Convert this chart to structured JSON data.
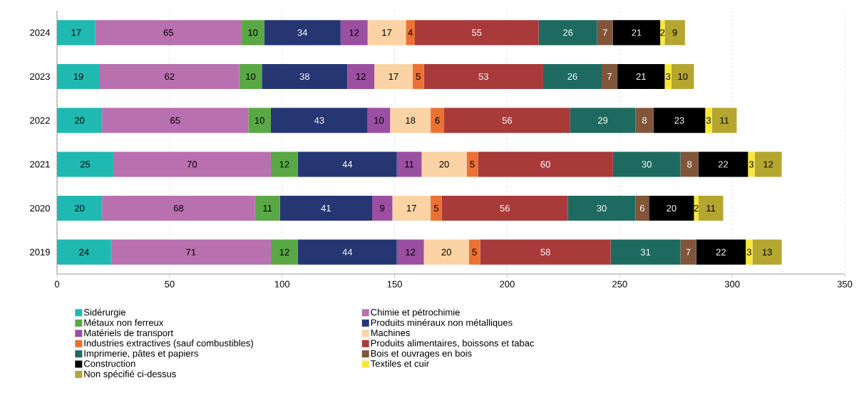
{
  "chart_data": {
    "type": "bar",
    "orientation": "horizontal",
    "stacked": true,
    "data_labels": true,
    "grid": "x",
    "legend": "bottom",
    "categories": [
      "2024",
      "2023",
      "2022",
      "2021",
      "2020",
      "2019"
    ],
    "xlim": [
      0,
      350
    ],
    "xticks": [
      0,
      50,
      100,
      150,
      200,
      250,
      300,
      350
    ],
    "series": [
      {
        "name": "Sidérurgie",
        "color": "#20b9b1",
        "values": [
          17,
          19,
          20,
          25,
          20,
          24
        ]
      },
      {
        "name": "Chimie et pétrochimie",
        "color": "#b870ae",
        "values": [
          65,
          62,
          65,
          70,
          68,
          71
        ]
      },
      {
        "name": "Métaux non ferreux",
        "color": "#5aa845",
        "values": [
          10,
          10,
          10,
          12,
          11,
          12
        ]
      },
      {
        "name": "Produits minéraux non métalliques",
        "color": "#263673",
        "values": [
          34,
          38,
          43,
          44,
          41,
          44
        ]
      },
      {
        "name": "Matériels de transport",
        "color": "#9b4fa0",
        "values": [
          12,
          12,
          10,
          11,
          9,
          12
        ]
      },
      {
        "name": "Machines",
        "color": "#fbd3a4",
        "values": [
          17,
          17,
          18,
          20,
          17,
          20
        ]
      },
      {
        "name": "Industries extractives (sauf combustibles)",
        "color": "#ec7134",
        "values": [
          4,
          5,
          6,
          5,
          5,
          5
        ]
      },
      {
        "name": "Produits alimentaires, boissons et tabac",
        "color": "#a83a3a",
        "values": [
          55,
          53,
          56,
          60,
          56,
          58
        ]
      },
      {
        "name": "Imprimerie, pâtes et papiers",
        "color": "#1e6a60",
        "values": [
          26,
          26,
          29,
          30,
          30,
          31
        ]
      },
      {
        "name": "Bois et ouvrages en bois",
        "color": "#80553a",
        "values": [
          7,
          7,
          8,
          8,
          6,
          7
        ]
      },
      {
        "name": "Construction",
        "color": "#000000",
        "values": [
          21,
          21,
          23,
          22,
          20,
          22
        ]
      },
      {
        "name": "Textiles et cuir",
        "color": "#f8e83a",
        "values": [
          2,
          3,
          3,
          3,
          2,
          3
        ]
      },
      {
        "name": "Non spécifié ci-dessus",
        "color": "#b5a630",
        "values": [
          9,
          10,
          11,
          12,
          11,
          13
        ]
      }
    ]
  }
}
